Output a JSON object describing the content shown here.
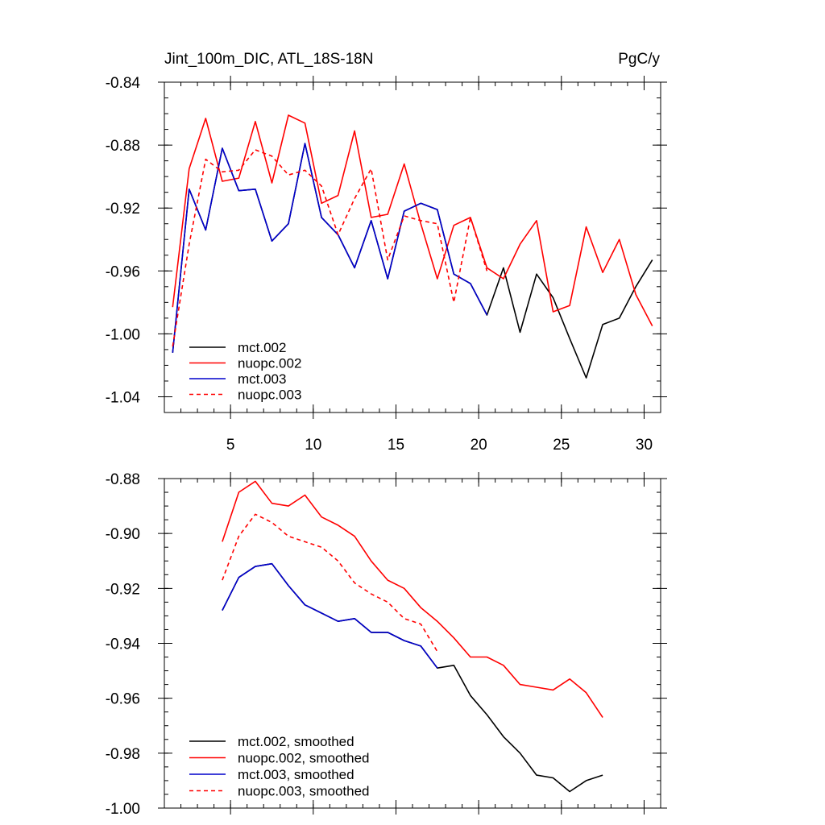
{
  "colors": {
    "black": "#000000",
    "red": "#ff0000",
    "blue": "#0000cc"
  },
  "chart_data": [
    {
      "type": "line",
      "title": "Jint_100m_DIC, ATL_18S-18N",
      "unit_label": "PgC/y",
      "xlim": [
        1,
        31
      ],
      "ylim": [
        -1.05,
        -0.84
      ],
      "yticks": [
        -0.84,
        -0.88,
        -0.92,
        -0.96,
        -1.0,
        -1.04
      ],
      "ytick_labels": [
        "-0.84",
        "-0.88",
        "-0.92",
        "-0.96",
        "-1.00",
        "-1.04"
      ],
      "xticks": [
        5,
        10,
        15,
        20,
        25,
        30
      ],
      "xtick_labels": [
        "5",
        "10",
        "15",
        "20",
        "25",
        "30"
      ],
      "legend_position": "bottom-left",
      "series": [
        {
          "name": "mct.002",
          "color": "#000000",
          "dash": "solid",
          "x": [
            1.5,
            2.5,
            3.5,
            4.5,
            5.5,
            6.5,
            7.5,
            8.5,
            9.5,
            10.5,
            11.5,
            12.5,
            13.5,
            14.5,
            15.5,
            16.5,
            17.5,
            18.5,
            19.5,
            20.5,
            21.5,
            22.5,
            23.5,
            24.5,
            25.5,
            26.5,
            27.5,
            28.5,
            29.5,
            30.5
          ],
          "y": [
            -1.012,
            -0.908,
            -0.934,
            -0.882,
            -0.909,
            -0.908,
            -0.941,
            -0.93,
            -0.879,
            -0.926,
            -0.937,
            -0.958,
            -0.928,
            -0.965,
            -0.922,
            -0.917,
            -0.921,
            -0.962,
            -0.968,
            -0.988,
            -0.958,
            -0.999,
            -0.962,
            -0.977,
            -1.003,
            -1.028,
            -0.994,
            -0.99,
            -0.97,
            -0.953
          ]
        },
        {
          "name": "nuopc.002",
          "color": "#ff0000",
          "dash": "solid",
          "x": [
            1.5,
            2.5,
            3.5,
            4.5,
            5.5,
            6.5,
            7.5,
            8.5,
            9.5,
            10.5,
            11.5,
            12.5,
            13.5,
            14.5,
            15.5,
            16.5,
            17.5,
            18.5,
            19.5,
            20.5,
            21.5,
            22.5,
            23.5,
            24.5,
            25.5,
            26.5,
            27.5,
            28.5,
            29.5,
            30.5
          ],
          "y": [
            -0.983,
            -0.895,
            -0.863,
            -0.903,
            -0.901,
            -0.865,
            -0.904,
            -0.861,
            -0.866,
            -0.917,
            -0.912,
            -0.871,
            -0.926,
            -0.924,
            -0.892,
            -0.93,
            -0.965,
            -0.931,
            -0.926,
            -0.958,
            -0.965,
            -0.943,
            -0.928,
            -0.986,
            -0.982,
            -0.932,
            -0.961,
            -0.94,
            -0.975,
            -0.995
          ]
        },
        {
          "name": "mct.003",
          "color": "#0000cc",
          "dash": "solid",
          "x": [
            1.5,
            2.5,
            3.5,
            4.5,
            5.5,
            6.5,
            7.5,
            8.5,
            9.5,
            10.5,
            11.5,
            12.5,
            13.5,
            14.5,
            15.5,
            16.5,
            17.5,
            18.5,
            19.5,
            20.5
          ],
          "y": [
            -1.012,
            -0.908,
            -0.934,
            -0.882,
            -0.909,
            -0.908,
            -0.941,
            -0.93,
            -0.879,
            -0.926,
            -0.937,
            -0.958,
            -0.928,
            -0.965,
            -0.922,
            -0.917,
            -0.921,
            -0.962,
            -0.968,
            -0.988
          ]
        },
        {
          "name": "nuopc.003",
          "color": "#ff0000",
          "dash": "dashed",
          "x": [
            1.5,
            2.5,
            3.5,
            4.5,
            5.5,
            6.5,
            7.5,
            8.5,
            9.5,
            10.5,
            11.5,
            12.5,
            13.5,
            14.5,
            15.5,
            16.5,
            17.5,
            18.5,
            19.5,
            20.5
          ],
          "y": [
            -1.008,
            -0.943,
            -0.889,
            -0.897,
            -0.896,
            -0.883,
            -0.887,
            -0.899,
            -0.896,
            -0.906,
            -0.937,
            -0.914,
            -0.895,
            -0.953,
            -0.925,
            -0.928,
            -0.93,
            -0.98,
            -0.926,
            -0.96
          ]
        }
      ]
    },
    {
      "type": "line",
      "xlim": [
        1,
        31
      ],
      "ylim": [
        -1.0,
        -0.88
      ],
      "yticks": [
        -0.88,
        -0.9,
        -0.92,
        -0.94,
        -0.96,
        -0.98,
        -1.0
      ],
      "ytick_labels": [
        "-0.88",
        "-0.90",
        "-0.92",
        "-0.94",
        "-0.96",
        "-0.98",
        "-1.00"
      ],
      "xticks": [
        5,
        10,
        15,
        20,
        25,
        30
      ],
      "legend_position": "bottom-left",
      "series": [
        {
          "name": "mct.002, smoothed",
          "color": "#000000",
          "dash": "solid",
          "x": [
            4.5,
            5.5,
            6.5,
            7.5,
            8.5,
            9.5,
            10.5,
            11.5,
            12.5,
            13.5,
            14.5,
            15.5,
            16.5,
            17.5,
            18.5,
            19.5,
            20.5,
            21.5,
            22.5,
            23.5,
            24.5,
            25.5,
            26.5,
            27.5
          ],
          "y": [
            -0.928,
            -0.916,
            -0.912,
            -0.911,
            -0.919,
            -0.926,
            -0.929,
            -0.932,
            -0.931,
            -0.936,
            -0.936,
            -0.939,
            -0.941,
            -0.949,
            -0.948,
            -0.959,
            -0.966,
            -0.974,
            -0.98,
            -0.988,
            -0.989,
            -0.994,
            -0.99,
            -0.988
          ]
        },
        {
          "name": "nuopc.002, smoothed",
          "color": "#ff0000",
          "dash": "solid",
          "x": [
            4.5,
            5.5,
            6.5,
            7.5,
            8.5,
            9.5,
            10.5,
            11.5,
            12.5,
            13.5,
            14.5,
            15.5,
            16.5,
            17.5,
            18.5,
            19.5,
            20.5,
            21.5,
            22.5,
            23.5,
            24.5,
            25.5,
            26.5,
            27.5
          ],
          "y": [
            -0.903,
            -0.885,
            -0.881,
            -0.889,
            -0.89,
            -0.886,
            -0.894,
            -0.897,
            -0.901,
            -0.91,
            -0.917,
            -0.92,
            -0.927,
            -0.932,
            -0.938,
            -0.945,
            -0.945,
            -0.948,
            -0.955,
            -0.956,
            -0.957,
            -0.953,
            -0.958,
            -0.967
          ]
        },
        {
          "name": "mct.003, smoothed",
          "color": "#0000cc",
          "dash": "solid",
          "x": [
            4.5,
            5.5,
            6.5,
            7.5,
            8.5,
            9.5,
            10.5,
            11.5,
            12.5,
            13.5,
            14.5,
            15.5,
            16.5,
            17.5
          ],
          "y": [
            -0.928,
            -0.916,
            -0.912,
            -0.911,
            -0.919,
            -0.926,
            -0.929,
            -0.932,
            -0.931,
            -0.936,
            -0.936,
            -0.939,
            -0.941,
            -0.949
          ]
        },
        {
          "name": "nuopc.003, smoothed",
          "color": "#ff0000",
          "dash": "dashed",
          "x": [
            4.5,
            5.5,
            6.5,
            7.5,
            8.5,
            9.5,
            10.5,
            11.5,
            12.5,
            13.5,
            14.5,
            15.5,
            16.5,
            17.5
          ],
          "y": [
            -0.917,
            -0.901,
            -0.893,
            -0.896,
            -0.901,
            -0.903,
            -0.905,
            -0.91,
            -0.918,
            -0.922,
            -0.925,
            -0.931,
            -0.933,
            -0.943
          ]
        }
      ]
    }
  ]
}
